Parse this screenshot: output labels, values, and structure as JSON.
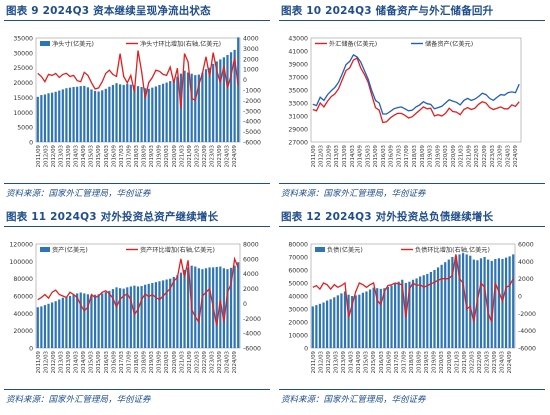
{
  "colors": {
    "bar": "#2e75b6",
    "line_red": "#e02020",
    "line_blue": "#1f5fbf",
    "title": "#1f4e8c"
  },
  "source": "资料来源：国家外汇管理局，华创证券",
  "chart_data": [
    {
      "type": "bar",
      "title": "图表 9   2024Q3 资本继续呈现净流出状态",
      "legend": [
        "净头寸(亿美元)",
        "净头寸环比增加(右轴,亿美元)"
      ],
      "x_ticks": [
        "2011/09",
        "2012/03",
        "2012/09",
        "2013/03",
        "2013/09",
        "2014/03",
        "2014/09",
        "2015/03",
        "2015/09",
        "2016/03",
        "2016/09",
        "2017/03",
        "2017/09",
        "2018/03",
        "2018/09",
        "2019/03",
        "2019/09",
        "2020/03",
        "2020/09",
        "2021/03",
        "2021/09",
        "2022/03",
        "2022/09",
        "2023/03",
        "2023/09",
        "2024/03",
        "2024/09"
      ],
      "ylim": [
        0,
        35000
      ],
      "y_ticks": [
        0,
        5000,
        10000,
        15000,
        20000,
        25000,
        30000,
        35000
      ],
      "y2lim": [
        -6000,
        4000
      ],
      "y2_ticks": [
        -6000,
        -5000,
        -4000,
        -3000,
        -2000,
        -1000,
        0,
        1000,
        2000,
        3000,
        4000
      ],
      "bars": [
        15200,
        15800,
        16000,
        16400,
        16600,
        16900,
        17300,
        17700,
        18100,
        18300,
        18500,
        18600,
        18800,
        18900,
        18400,
        17700,
        17200,
        17000,
        17400,
        17900,
        18600,
        19200,
        19800,
        19400,
        19200,
        19600,
        19300,
        19100,
        18800,
        18500,
        18100,
        17900,
        18300,
        18700,
        19200,
        19600,
        20000,
        20500,
        21000,
        22000,
        23000,
        24000,
        23400,
        23000,
        22500,
        22700,
        23300,
        24500,
        25000,
        26300,
        27100,
        27800,
        28500,
        29300,
        30200,
        31000,
        35200
      ],
      "line": [
        600,
        300,
        -200,
        500,
        400,
        600,
        200,
        500,
        600,
        300,
        400,
        -100,
        -200,
        700,
        400,
        -300,
        -900,
        -800,
        -200,
        600,
        900,
        500,
        300,
        2500,
        300,
        -300,
        400,
        -1200,
        2800,
        800,
        -1800,
        -300,
        200,
        900,
        800,
        500,
        400,
        1200,
        -300,
        1100,
        -2800,
        2500,
        1700,
        -1800,
        -2000,
        -500,
        600,
        2200,
        300,
        2600,
        900,
        -300,
        1300,
        -800,
        400,
        2100,
        -600
      ]
    },
    {
      "type": "line",
      "title": "图表 10   2024Q3 储备资产与外汇储备回升",
      "legend": [
        "外汇储备(亿美元)",
        "储备资产(亿美元)"
      ],
      "x_ticks": [
        "2011/09",
        "2012/03",
        "2012/09",
        "2013/03",
        "2013/09",
        "2014/03",
        "2014/09",
        "2015/03",
        "2015/09",
        "2016/03",
        "2016/09",
        "2017/03",
        "2017/09",
        "2018/03",
        "2018/09",
        "2019/03",
        "2019/09",
        "2020/03",
        "2020/09",
        "2021/03",
        "2021/09",
        "2022/03",
        "2022/09",
        "2023/03",
        "2023/09",
        "2024/03",
        "2024/09"
      ],
      "ylim": [
        27000,
        43000
      ],
      "y_ticks": [
        27000,
        29000,
        31000,
        33000,
        35000,
        37000,
        39000,
        41000,
        43000
      ],
      "series": [
        {
          "name": "外汇储备(亿美元)",
          "color": "red",
          "values": [
            32000,
            31800,
            33000,
            32400,
            33300,
            34000,
            34400,
            35200,
            36600,
            38000,
            38400,
            39600,
            39900,
            38400,
            37400,
            36200,
            34200,
            32300,
            31900,
            30000,
            30100,
            30700,
            31100,
            31400,
            31400,
            31100,
            30700,
            30900,
            31400,
            31900,
            32400,
            32100,
            32200,
            31000,
            31200,
            31000,
            31400,
            32200,
            31700,
            31600,
            31200,
            32000,
            32300,
            32000,
            32200,
            32800,
            33200,
            33000,
            32300,
            32000,
            32200,
            32400,
            32100,
            32100,
            32700,
            32500,
            33200
          ]
        },
        {
          "name": "储备资产(亿美元)",
          "color": "blue",
          "values": [
            32800,
            32600,
            33900,
            33400,
            34300,
            34900,
            35400,
            36200,
            37500,
            38900,
            39400,
            40400,
            40100,
            39300,
            38000,
            36700,
            34900,
            33400,
            33000,
            31300,
            31300,
            31700,
            32100,
            32300,
            32400,
            32100,
            31800,
            31900,
            32400,
            32700,
            33200,
            32900,
            32800,
            32100,
            32300,
            32500,
            33000,
            33500,
            33300,
            33100,
            32700,
            33400,
            33700,
            33400,
            33600,
            34000,
            34500,
            34300,
            33700,
            33400,
            33900,
            34300,
            34200,
            34600,
            34700,
            34600,
            35900
          ]
        }
      ]
    },
    {
      "type": "bar",
      "title": "图表 11   2024Q3 对外投资总资产继续增长",
      "legend": [
        "资产(亿美元)",
        "资产环比增加(右轴,亿美元)"
      ],
      "x_ticks": [
        "2011/09",
        "2012/03",
        "2012/09",
        "2013/03",
        "2013/09",
        "2014/03",
        "2014/09",
        "2015/03",
        "2015/09",
        "2016/03",
        "2016/09",
        "2017/03",
        "2017/09",
        "2018/03",
        "2018/09",
        "2019/03",
        "2019/09",
        "2020/03",
        "2020/09",
        "2021/03",
        "2021/09",
        "2022/03",
        "2022/09",
        "2023/03",
        "2023/09",
        "2024/03",
        "2024/09"
      ],
      "ylim": [
        0,
        120000
      ],
      "y_ticks": [
        0,
        20000,
        40000,
        60000,
        80000,
        100000,
        120000
      ],
      "y2lim": [
        -6000,
        8000
      ],
      "y2_ticks": [
        -6000,
        -4000,
        -2000,
        0,
        2000,
        4000,
        6000,
        8000
      ],
      "bars": [
        47000,
        48000,
        49500,
        51000,
        52500,
        54000,
        56000,
        58000,
        59000,
        60000,
        61500,
        63000,
        64000,
        63000,
        62000,
        61000,
        61500,
        62000,
        63000,
        64500,
        66000,
        68000,
        70000,
        69000,
        68500,
        70000,
        71000,
        72000,
        71000,
        71500,
        73000,
        74000,
        75000,
        76000,
        77000,
        78000,
        79000,
        80000,
        82000,
        84000,
        87000,
        90000,
        93000,
        95000,
        94000,
        92000,
        91000,
        92000,
        93000,
        93000,
        93500,
        94000,
        92000,
        91000,
        92500,
        95000,
        99000
      ],
      "line": [
        500,
        800,
        1200,
        700,
        1500,
        1800,
        1200,
        1000,
        800,
        1500,
        1200,
        800,
        -200,
        -1000,
        -500,
        1200,
        800,
        1000,
        1500,
        1700,
        1300,
        700,
        -500,
        600,
        1000,
        1300,
        500,
        -1500,
        -800,
        500,
        1300,
        900,
        1200,
        800,
        500,
        1000,
        1500,
        2000,
        3000,
        3500,
        6000,
        3500,
        5800,
        -800,
        -1800,
        -2500,
        1000,
        1500,
        2000,
        -500,
        -3000,
        500,
        -2500,
        1500,
        2600,
        6000,
        4800
      ]
    },
    {
      "type": "bar",
      "title": "图表 12   2024Q3 对外投资总负债继续增长",
      "legend": [
        "负债(亿美元)",
        "负债环比增加(右轴,亿美元)"
      ],
      "x_ticks": [
        "2011/09",
        "2012/03",
        "2012/09",
        "2013/03",
        "2013/09",
        "2014/03",
        "2014/09",
        "2015/03",
        "2015/09",
        "2016/03",
        "2016/09",
        "2017/03",
        "2017/09",
        "2018/03",
        "2018/09",
        "2019/03",
        "2019/09",
        "2020/03",
        "2020/09",
        "2021/03",
        "2021/09",
        "2022/03",
        "2022/09",
        "2023/03",
        "2023/09",
        "2024/03",
        "2024/09"
      ],
      "ylim": [
        0,
        80000
      ],
      "y_ticks": [
        0,
        10000,
        20000,
        30000,
        40000,
        50000,
        60000,
        70000,
        80000
      ],
      "y2lim": [
        -6000,
        6000
      ],
      "y2_ticks": [
        -6000,
        -4000,
        -2000,
        0,
        2000,
        4000,
        6000
      ],
      "bars": [
        32000,
        33000,
        34000,
        35000,
        36500,
        37500,
        39000,
        40500,
        42000,
        43500,
        41000,
        40000,
        40500,
        41000,
        42500,
        43500,
        45000,
        46500,
        46000,
        45500,
        46000,
        47000,
        48000,
        49500,
        51000,
        52500,
        50000,
        51000,
        52500,
        53500,
        55000,
        56000,
        57000,
        58500,
        60000,
        62000,
        64000,
        66000,
        68000,
        70000,
        71000,
        72000,
        73000,
        72000,
        71000,
        68000,
        67500,
        69000,
        70000,
        68000,
        67000,
        68500,
        69000,
        68500,
        69500,
        70500,
        72000
      ],
      "line": [
        1000,
        1200,
        800,
        1500,
        1300,
        800,
        1300,
        1000,
        1200,
        1500,
        -2500,
        -1000,
        500,
        1500,
        1300,
        1000,
        1300,
        1500,
        -500,
        -1000,
        500,
        1200,
        1300,
        1500,
        1400,
        1300,
        -2500,
        800,
        1500,
        1200,
        1300,
        1000,
        1200,
        1400,
        1600,
        1800,
        2000,
        2000,
        2000,
        2400,
        4800,
        2000,
        1500,
        -1500,
        -1200,
        -3000,
        -500,
        1500,
        1000,
        -2000,
        -3000,
        1500,
        500,
        -600,
        1000,
        1200,
        2000
      ]
    }
  ]
}
